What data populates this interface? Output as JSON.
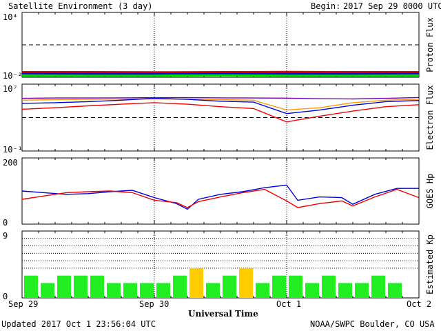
{
  "header": {
    "title": "Satellite Environment (3 day)",
    "begin_label": "Begin:",
    "begin_value": "2017 Sep 29 0000 UTC"
  },
  "footer": {
    "updated": "Updated 2017 Oct  1 23:56:04 UTC",
    "credit": "NOAA/SWPC Boulder, CO USA"
  },
  "colors": {
    "red": "#ee0000",
    "blue": "#0000dd",
    "green": "#00dd00",
    "purple": "#7000b0",
    "orange": "#ff9900",
    "kp_green": "#22ee22",
    "kp_yellow": "#ffcc00"
  },
  "chart_data": [
    {
      "type": "line",
      "name": "proton",
      "ylabel": "Proton Flux",
      "yscale": "log",
      "ylim": [
        0.01,
        10000
      ],
      "ytick_labels": [
        "10⁴",
        "10⁻²"
      ],
      "threshold": 10,
      "x_unit": "hours since 2017-09-29 00:00 UTC",
      "series": [
        {
          "color": "red",
          "x": [
            0,
            12,
            24,
            36,
            48,
            60,
            72
          ],
          "y": [
            0.03,
            0.03,
            0.029,
            0.03,
            0.031,
            0.03,
            0.03
          ]
        },
        {
          "color": "blue",
          "x": [
            0,
            12,
            24,
            36,
            48,
            60,
            72
          ],
          "y": [
            0.022,
            0.021,
            0.021,
            0.022,
            0.021,
            0.021,
            0.022
          ]
        },
        {
          "color": "green",
          "x": [
            0,
            12,
            24,
            36,
            48,
            60,
            72
          ],
          "y": [
            0.014,
            0.014,
            0.014,
            0.015,
            0.014,
            0.014,
            0.014
          ]
        }
      ]
    },
    {
      "type": "line",
      "name": "electron",
      "ylabel": "Electron Flux",
      "yscale": "log",
      "ylim": [
        0.1,
        10000000
      ],
      "ytick_labels": [
        "10⁷",
        "10⁻¹"
      ],
      "threshold": 1000,
      "x_unit": "hours since 2017-09-29 00:00 UTC",
      "series": [
        {
          "color": "purple",
          "x": [
            0,
            6,
            12,
            18,
            24,
            30,
            36,
            42,
            48,
            54,
            60,
            66,
            72
          ],
          "y": [
            200000,
            220000,
            220000,
            230000,
            240000,
            240000,
            230000,
            220000,
            210000,
            180000,
            170000,
            200000,
            250000
          ]
        },
        {
          "color": "orange",
          "x": [
            0,
            6,
            12,
            18,
            24,
            30,
            36,
            42,
            48,
            54,
            60,
            66,
            72
          ],
          "y": [
            120000,
            140000,
            150000,
            160000,
            170000,
            160000,
            140000,
            120000,
            8000,
            15000,
            60000,
            120000,
            150000
          ]
        },
        {
          "color": "blue",
          "x": [
            0,
            6,
            12,
            18,
            24,
            30,
            36,
            42,
            48,
            54,
            60,
            66,
            72
          ],
          "y": [
            50000,
            60000,
            80000,
            120000,
            200000,
            150000,
            90000,
            70000,
            3000,
            8000,
            30000,
            80000,
            110000
          ]
        },
        {
          "color": "red",
          "x": [
            0,
            6,
            12,
            18,
            24,
            30,
            36,
            42,
            48,
            54,
            60,
            66,
            72
          ],
          "y": [
            10000,
            15000,
            25000,
            40000,
            60000,
            40000,
            20000,
            12000,
            300,
            1500,
            6000,
            20000,
            35000
          ]
        }
      ]
    },
    {
      "type": "line",
      "name": "goes_hp",
      "ylabel": "GOES Hp",
      "ylim": [
        0,
        200
      ],
      "ytick_labels": [
        "200",
        "0"
      ],
      "x_unit": "hours since 2017-09-29 00:00 UTC",
      "series": [
        {
          "color": "blue",
          "x": [
            0,
            4,
            8,
            12,
            16,
            20,
            24,
            28,
            30,
            32,
            36,
            40,
            44,
            48,
            50,
            54,
            58,
            60,
            64,
            68,
            72
          ],
          "y": [
            100,
            95,
            90,
            92,
            98,
            102,
            80,
            62,
            45,
            75,
            90,
            98,
            110,
            118,
            72,
            82,
            80,
            60,
            90,
            108,
            108
          ]
        },
        {
          "color": "red",
          "x": [
            0,
            4,
            8,
            12,
            16,
            20,
            24,
            28,
            30,
            32,
            36,
            40,
            44,
            48,
            50,
            54,
            58,
            60,
            64,
            68,
            72
          ],
          "y": [
            75,
            85,
            95,
            98,
            100,
            95,
            72,
            65,
            50,
            68,
            82,
            95,
            105,
            70,
            50,
            62,
            70,
            55,
            82,
            105,
            80
          ]
        }
      ]
    },
    {
      "type": "bar",
      "name": "kp",
      "ylabel": "Estimated Kp",
      "ylim": [
        0,
        9
      ],
      "ytick_labels": [
        "9",
        "0"
      ],
      "gridlines": [
        4,
        5,
        6,
        7,
        8
      ],
      "bar_width_hours": 3,
      "values": [
        3,
        2,
        3,
        3,
        3,
        2,
        2,
        2,
        2,
        3,
        4,
        2,
        3,
        4,
        2,
        3,
        3,
        2,
        3,
        2,
        2,
        3,
        2
      ],
      "bar_colors": [
        "kp_green",
        "kp_green",
        "kp_green",
        "kp_green",
        "kp_green",
        "kp_green",
        "kp_green",
        "kp_green",
        "kp_green",
        "kp_green",
        "kp_yellow",
        "kp_green",
        "kp_green",
        "kp_yellow",
        "kp_green",
        "kp_green",
        "kp_green",
        "kp_green",
        "kp_green",
        "kp_green",
        "kp_green",
        "kp_green",
        "kp_green"
      ]
    }
  ],
  "x_axis": {
    "title": "Universal Time",
    "tick_labels": [
      "Sep 29",
      "Sep 30",
      "Oct 1",
      "Oct 2"
    ],
    "day_markers_hours": [
      24,
      48
    ]
  }
}
